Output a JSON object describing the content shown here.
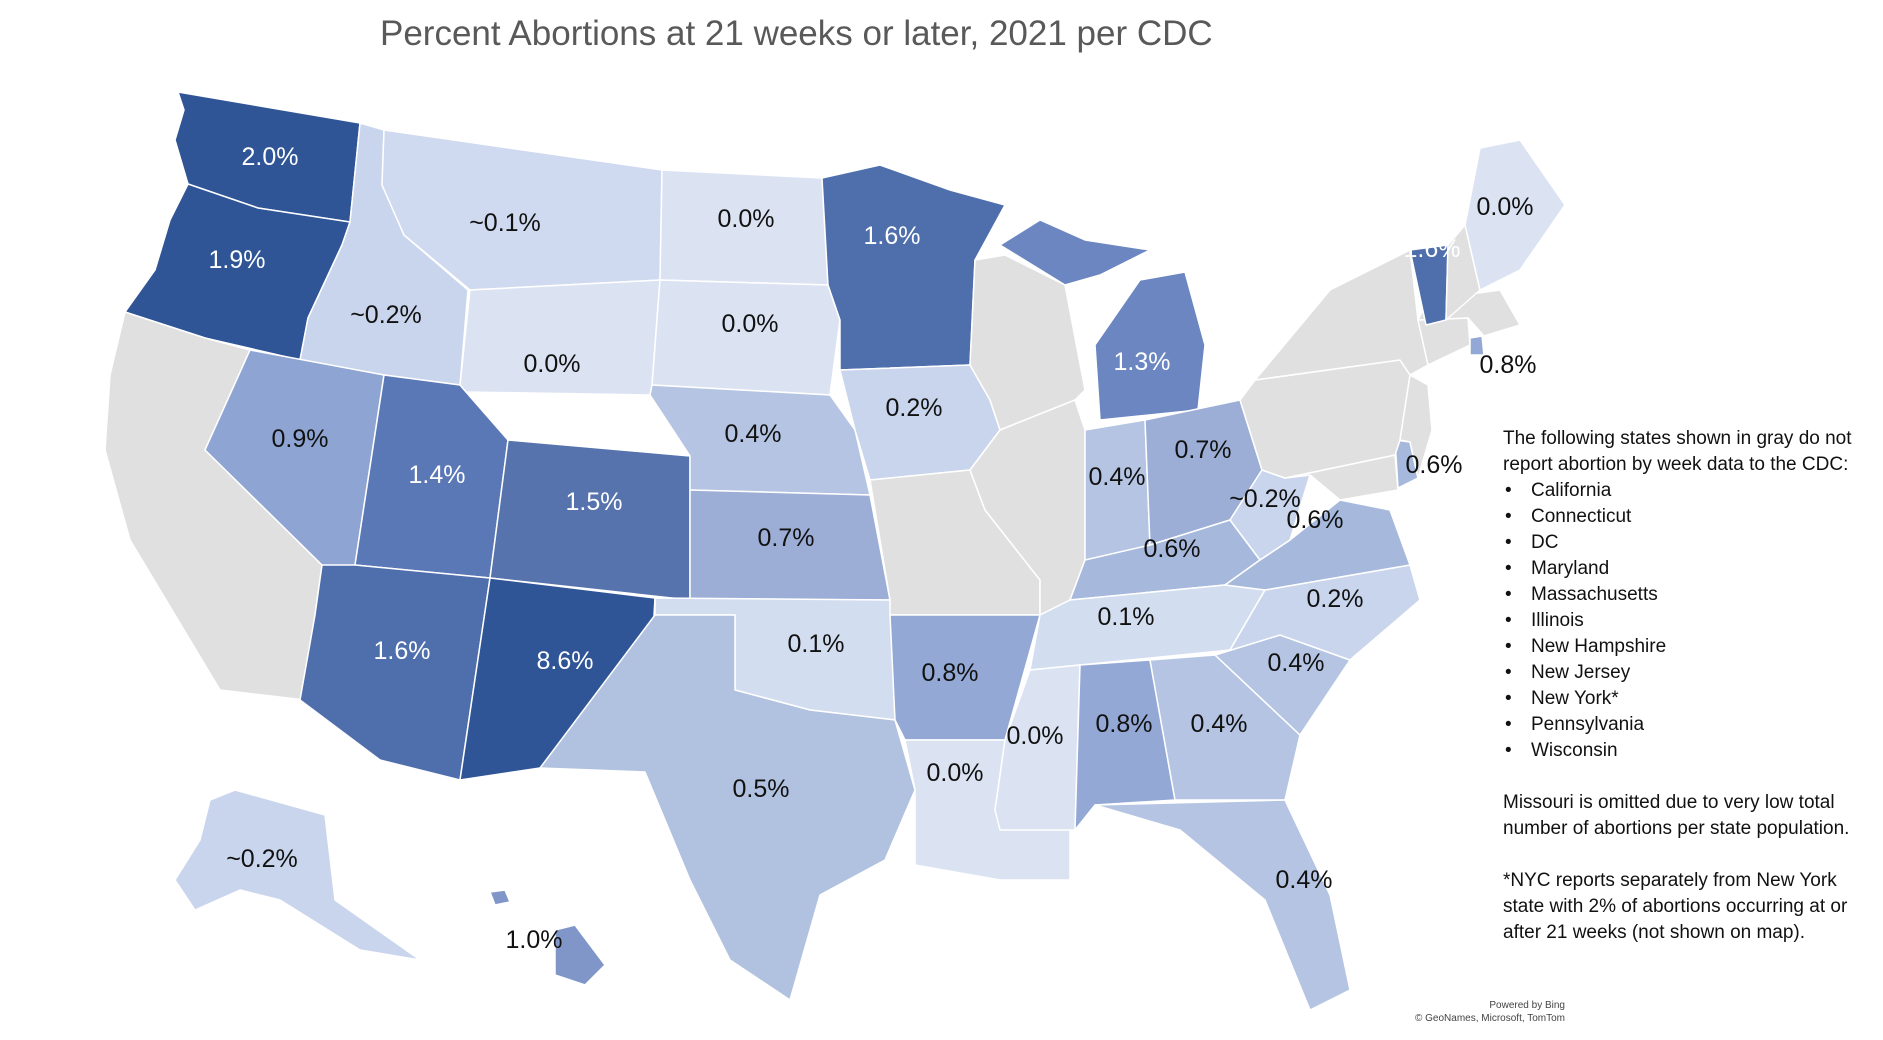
{
  "title": "Percent Abortions at 21 weeks or later, 2021 per CDC",
  "colors": {
    "very_light": "#dbe3f3",
    "light": "#c9d5ec",
    "light_mid": "#b4c4e2",
    "mid": "#9caed6",
    "mid_dark": "#7990c7",
    "dark": "#5673ae",
    "darkest": "#2f5597",
    "no_data_gray": "#e0e0e0",
    "label_dark": "#111111",
    "label_light": "#ffffff"
  },
  "states": [
    {
      "name": "Washington",
      "label": "2.0%",
      "color": "#2f5597"
    },
    {
      "name": "Oregon",
      "label": "1.9%",
      "color": "#2f5597"
    },
    {
      "name": "California",
      "label": "",
      "color": "#e0e0e0"
    },
    {
      "name": "Idaho",
      "label": "~0.2%",
      "color": "#c9d5ec"
    },
    {
      "name": "Nevada",
      "label": "0.9%",
      "color": "#8ea4d2"
    },
    {
      "name": "Montana",
      "label": "~0.1%",
      "color": "#cfd9ef"
    },
    {
      "name": "Wyoming",
      "label": "0.0%",
      "color": "#dbe3f3"
    },
    {
      "name": "Utah",
      "label": "1.4%",
      "color": "#5a77b6"
    },
    {
      "name": "Arizona",
      "label": "1.6%",
      "color": "#4f6eac"
    },
    {
      "name": "Colorado",
      "label": "1.5%",
      "color": "#5673ae"
    },
    {
      "name": "New Mexico",
      "label": "8.6%",
      "color": "#2f5597"
    },
    {
      "name": "North Dakota",
      "label": "0.0%",
      "color": "#dbe3f3"
    },
    {
      "name": "South Dakota",
      "label": "0.0%",
      "color": "#dbe3f3"
    },
    {
      "name": "Nebraska",
      "label": "0.4%",
      "color": "#b4c4e2"
    },
    {
      "name": "Kansas",
      "label": "0.7%",
      "color": "#9caed6"
    },
    {
      "name": "Oklahoma",
      "label": "0.1%",
      "color": "#d3ddf0"
    },
    {
      "name": "Texas",
      "label": "0.5%",
      "color": "#b1c1e0"
    },
    {
      "name": "Minnesota",
      "label": "1.6%",
      "color": "#4f6eac"
    },
    {
      "name": "Iowa",
      "label": "0.2%",
      "color": "#c9d5ec"
    },
    {
      "name": "Missouri",
      "label": "",
      "color": "#e0e0e0"
    },
    {
      "name": "Arkansas",
      "label": "0.8%",
      "color": "#93a8d4"
    },
    {
      "name": "Louisiana",
      "label": "0.0%",
      "color": "#dbe3f3"
    },
    {
      "name": "Wisconsin",
      "label": "",
      "color": "#e0e0e0"
    },
    {
      "name": "Illinois",
      "label": "",
      "color": "#e0e0e0"
    },
    {
      "name": "Michigan",
      "label": "1.3%",
      "color": "#6b86c1"
    },
    {
      "name": "Indiana",
      "label": "0.4%",
      "color": "#b4c4e2"
    },
    {
      "name": "Ohio",
      "label": "0.7%",
      "color": "#9caed6"
    },
    {
      "name": "Kentucky",
      "label": "0.6%",
      "color": "#a6b8dc"
    },
    {
      "name": "Tennessee",
      "label": "0.1%",
      "color": "#d3ddf0"
    },
    {
      "name": "Mississippi",
      "label": "0.0%",
      "color": "#dbe3f3"
    },
    {
      "name": "Alabama",
      "label": "0.8%",
      "color": "#93a8d4"
    },
    {
      "name": "Georgia",
      "label": "0.4%",
      "color": "#b4c4e2"
    },
    {
      "name": "Florida",
      "label": "0.4%",
      "color": "#b4c4e2"
    },
    {
      "name": "South Carolina",
      "label": "0.4%",
      "color": "#b4c4e2"
    },
    {
      "name": "North Carolina",
      "label": "0.2%",
      "color": "#c9d5ec"
    },
    {
      "name": "Virginia",
      "label": "0.6%",
      "color": "#a6b8dc"
    },
    {
      "name": "West Virginia",
      "label": "~0.2%",
      "color": "#c9d5ec"
    },
    {
      "name": "Maryland",
      "label": "",
      "color": "#e0e0e0"
    },
    {
      "name": "Delaware",
      "label": "0.6%",
      "color": "#a6b8dc"
    },
    {
      "name": "Pennsylvania",
      "label": "",
      "color": "#e0e0e0"
    },
    {
      "name": "New Jersey",
      "label": "",
      "color": "#e0e0e0"
    },
    {
      "name": "New York",
      "label": "",
      "color": "#e0e0e0"
    },
    {
      "name": "Connecticut",
      "label": "",
      "color": "#e0e0e0"
    },
    {
      "name": "Rhode Island",
      "label": "0.8%",
      "color": "#93a8d4"
    },
    {
      "name": "Massachusetts",
      "label": "",
      "color": "#e0e0e0"
    },
    {
      "name": "Vermont",
      "label": "1.6%",
      "color": "#4f6eac"
    },
    {
      "name": "New Hampshire",
      "label": "",
      "color": "#e0e0e0"
    },
    {
      "name": "Maine",
      "label": "0.0%",
      "color": "#dbe3f3"
    },
    {
      "name": "Alaska",
      "label": "~0.2%",
      "color": "#c9d5ec"
    },
    {
      "name": "Hawaii",
      "label": "1.0%",
      "color": "#8196c8"
    }
  ],
  "notes": {
    "intro": "The following states shown in gray do not report abortion by week data to the CDC:",
    "gray_states": [
      "California",
      "Connecticut",
      "DC",
      "Maryland",
      "Massachusetts",
      "Illinois",
      "New Hampshire",
      "New Jersey",
      "New York*",
      "Pennsylvania",
      "Wisconsin"
    ],
    "missouri_note": "Missouri is omitted due to very low total number of abortions per state population.",
    "nyc_note": "*NYC reports separately from New York state with 2% of abortions occurring at or after 21 weeks (not shown on map)."
  },
  "credit": {
    "line1": "Powered by Bing",
    "line2": "© GeoNames, Microsoft, TomTom"
  }
}
